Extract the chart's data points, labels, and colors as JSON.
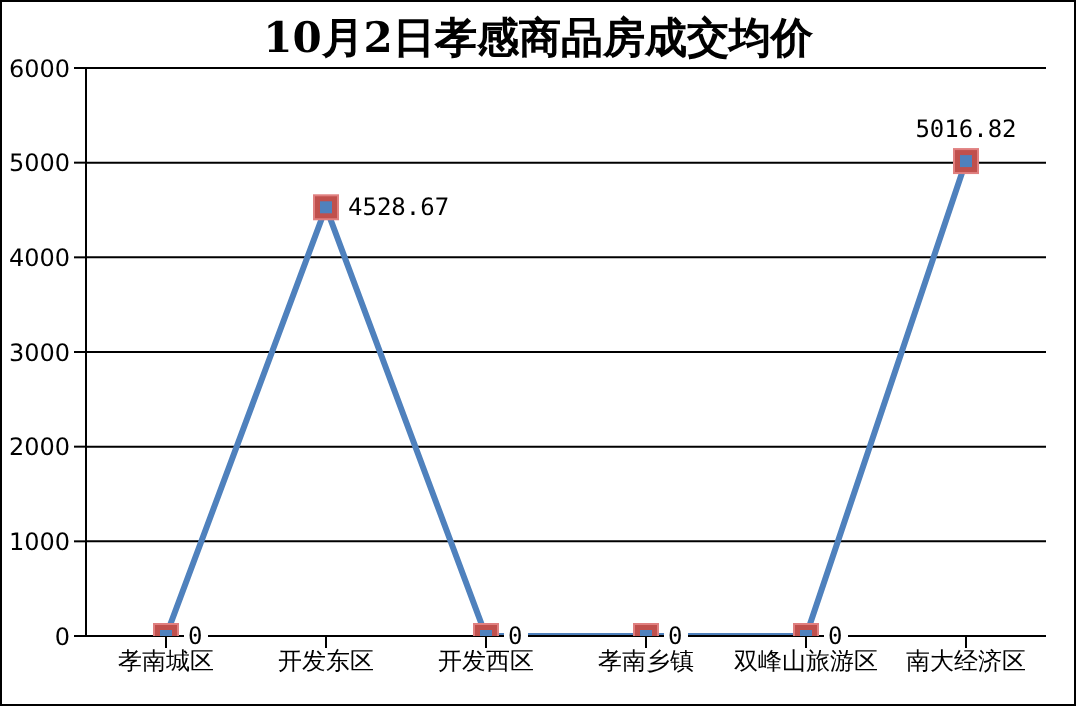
{
  "chart_data": {
    "type": "line",
    "title": "10月2日孝感商品房成交均价",
    "categories": [
      "孝南城区",
      "开发东区",
      "开发西区",
      "孝南乡镇",
      "双峰山旅游区",
      "南大经济区"
    ],
    "series": [
      {
        "color": "#4f81bd",
        "values": [
          0,
          4528.67,
          0,
          0,
          0,
          5016.82
        ]
      }
    ],
    "value_labels": [
      "0",
      "4528.67",
      "0",
      "0",
      "0",
      "5016.82"
    ],
    "ylim": [
      0,
      6000
    ],
    "yticks": [
      0,
      1000,
      2000,
      3000,
      4000,
      5000,
      6000
    ],
    "grid": "y",
    "marker": "square",
    "legend": false
  }
}
